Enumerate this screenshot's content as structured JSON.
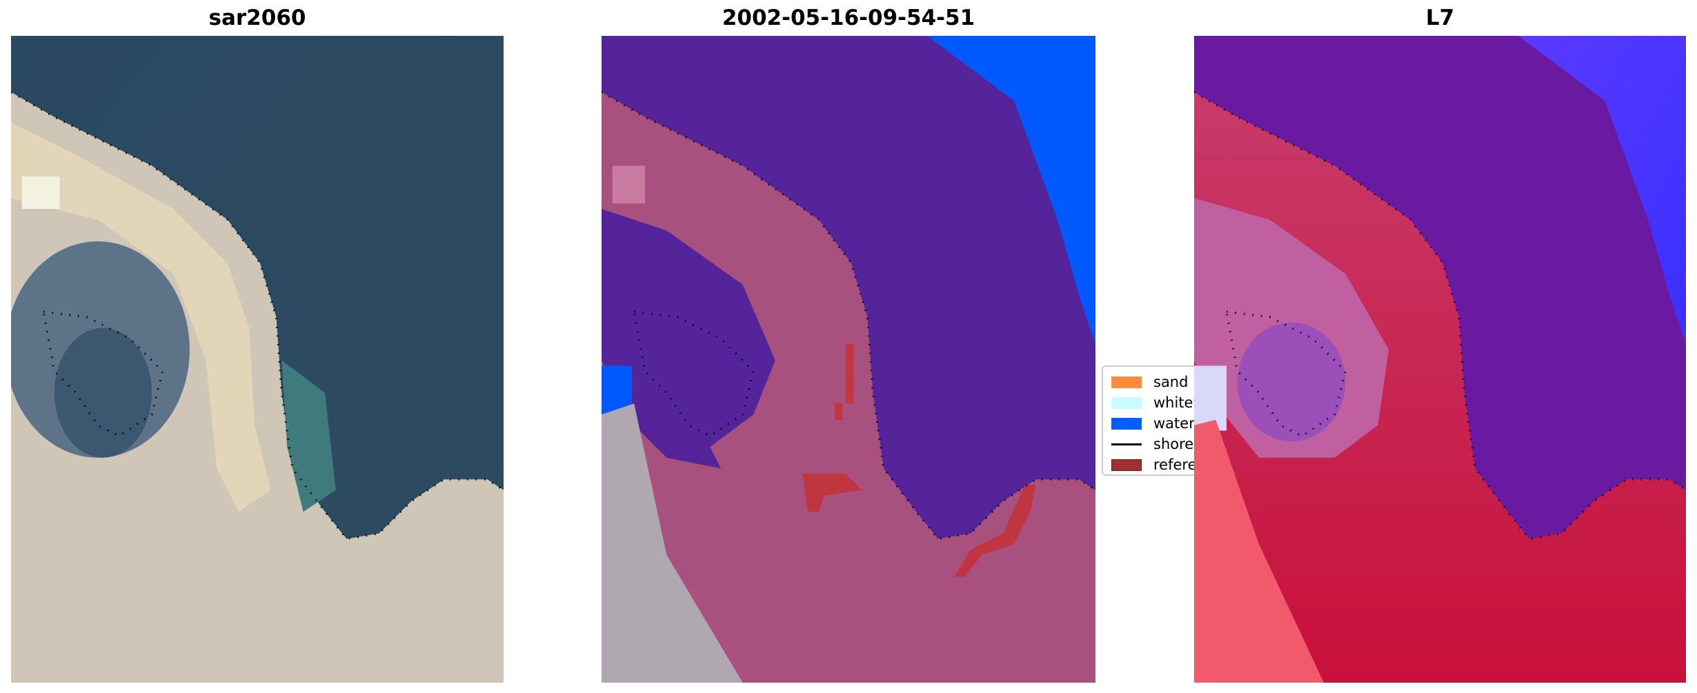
{
  "panels": [
    {
      "title": "sar2060"
    },
    {
      "title": "2002-05-16-09-54-51"
    },
    {
      "title": "L7"
    }
  ],
  "legend": {
    "items": [
      {
        "label": "sand",
        "color": "#ff8c3a",
        "kind": "patch"
      },
      {
        "label": "whitew",
        "color": "#c8fcff",
        "kind": "patch"
      },
      {
        "label": "water",
        "color": "#0060ff",
        "kind": "patch"
      },
      {
        "label": "shoreli",
        "color": "#000000",
        "kind": "line"
      },
      {
        "label": "referen",
        "color": "#a03030",
        "kind": "patch"
      }
    ]
  },
  "colors": {
    "ocean_rgb": "#2e4b63",
    "sand_rgb": "#d8ccb0",
    "water_class": "#0058ff",
    "other_class": "#55249a",
    "land_class": "#a8507e",
    "l7_purple": "#6a1aa0",
    "l7_red": "#d03060",
    "reference": "#c0353f"
  }
}
